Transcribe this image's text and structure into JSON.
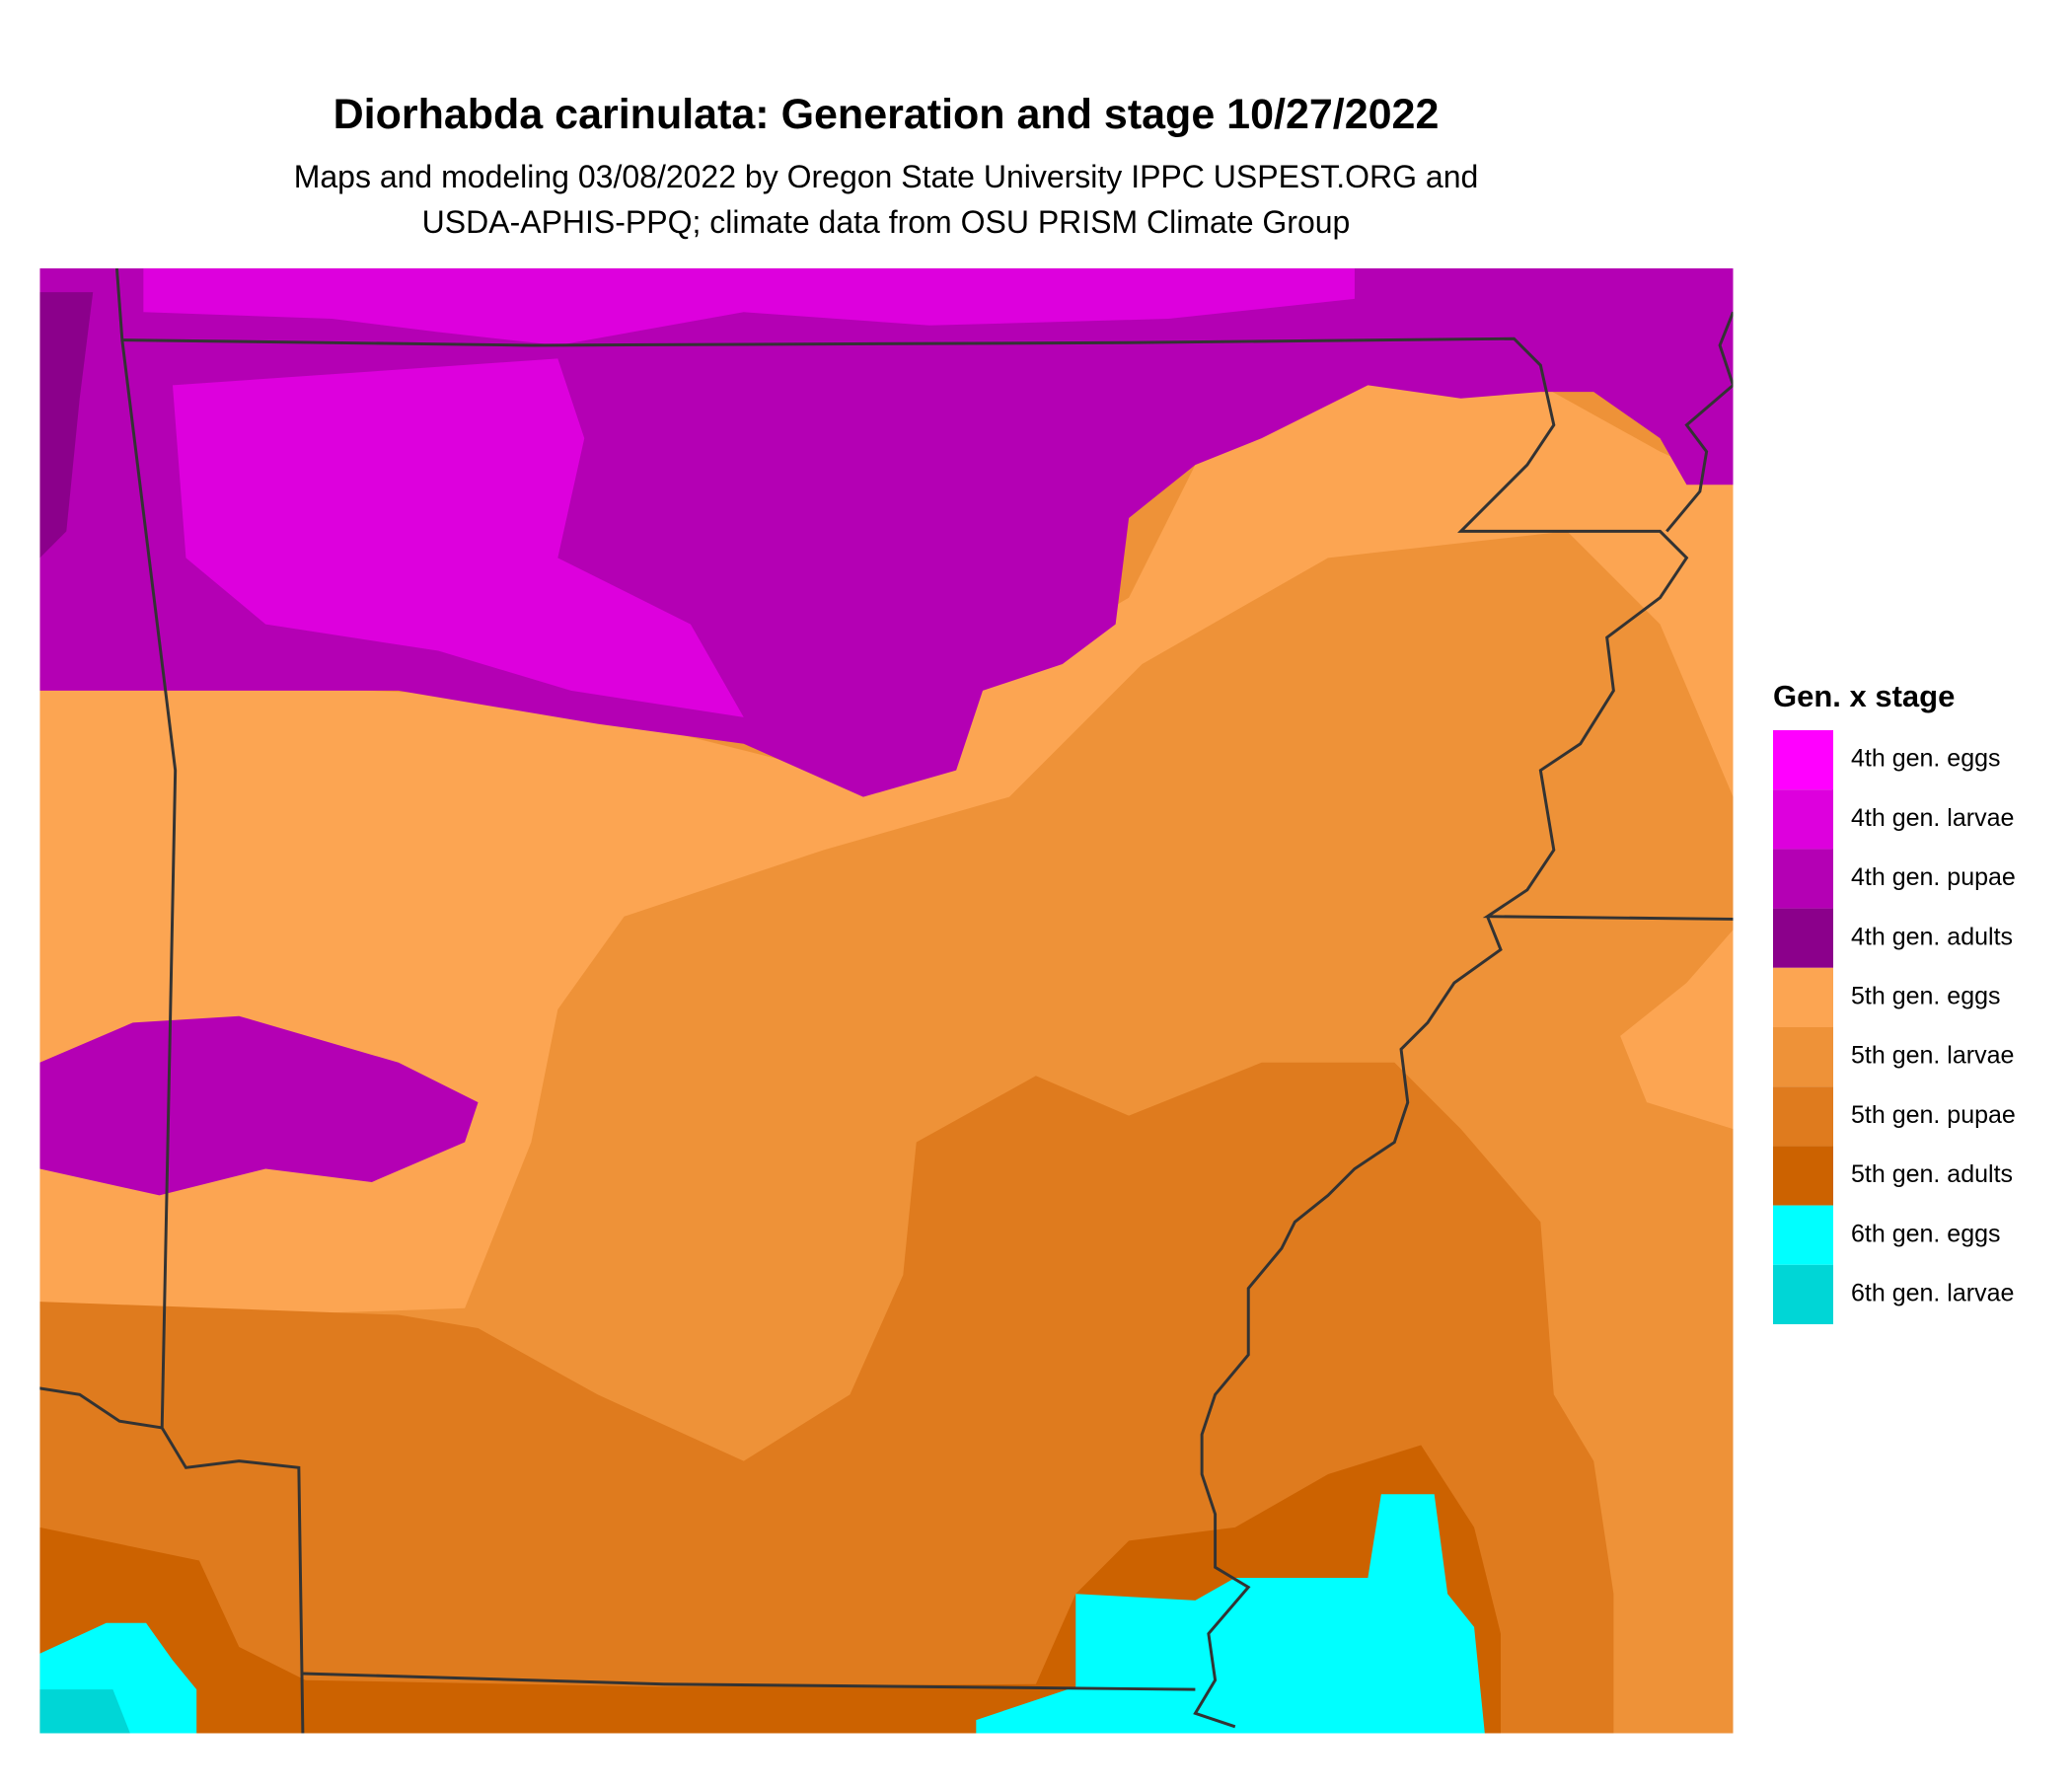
{
  "title": "Diorhabda carinulata: Generation and stage 10/27/2022",
  "subtitle": [
    "Maps and modeling 03/08/2022 by Oregon State University IPPC USPEST.ORG and",
    "USDA-APHIS-PPQ; climate data from OSU PRISM Climate Group"
  ],
  "legend": {
    "title": "Gen. x stage",
    "items": [
      {
        "label": "4th gen. eggs",
        "color": "#ff00ff"
      },
      {
        "label": "4th gen. larvae",
        "color": "#dd00dd"
      },
      {
        "label": "4th gen. pupae",
        "color": "#b400b4"
      },
      {
        "label": "4th gen. adults",
        "color": "#8b008b"
      },
      {
        "label": "5th gen. eggs",
        "color": "#fca552"
      },
      {
        "label": "5th gen. larvae",
        "color": "#ee9238"
      },
      {
        "label": "5th gen. pupae",
        "color": "#df7b1e"
      },
      {
        "label": "5th gen. adults",
        "color": "#cc6200"
      },
      {
        "label": "6th gen. eggs",
        "color": "#00ffff"
      },
      {
        "label": "6th gen. larvae",
        "color": "#00d6d6"
      }
    ]
  }
}
